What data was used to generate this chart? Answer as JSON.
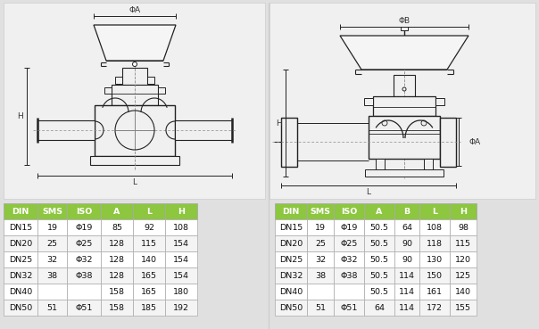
{
  "bg_color": "#e0e0e0",
  "panel_color": "#e8e8e8",
  "table1_header": [
    "DIN",
    "SMS",
    "ISO",
    "A",
    "L",
    "H"
  ],
  "table1_rows": [
    [
      "DN15",
      "19",
      "Φ19",
      "85",
      "92",
      "108"
    ],
    [
      "DN20",
      "25",
      "Φ25",
      "128",
      "115",
      "154"
    ],
    [
      "DN25",
      "32",
      "Φ32",
      "128",
      "140",
      "154"
    ],
    [
      "DN32",
      "38",
      "Φ38",
      "128",
      "165",
      "154"
    ],
    [
      "DN40",
      "",
      "",
      "158",
      "165",
      "180"
    ],
    [
      "DN50",
      "51",
      "Φ51",
      "158",
      "185",
      "192"
    ]
  ],
  "table2_header": [
    "DIN",
    "SMS",
    "ISO",
    "A",
    "B",
    "L",
    "H"
  ],
  "table2_rows": [
    [
      "DN15",
      "19",
      "Φ19",
      "50.5",
      "64",
      "108",
      "98"
    ],
    [
      "DN20",
      "25",
      "Φ25",
      "50.5",
      "90",
      "118",
      "115"
    ],
    [
      "DN25",
      "32",
      "Φ32",
      "50.5",
      "90",
      "130",
      "120"
    ],
    [
      "DN32",
      "38",
      "Φ38",
      "50.5",
      "114",
      "150",
      "125"
    ],
    [
      "DN40",
      "",
      "",
      "50.5",
      "114",
      "161",
      "140"
    ],
    [
      "DN50",
      "51",
      "Φ51",
      "64",
      "114",
      "172",
      "155"
    ]
  ],
  "header_color": "#8dc63f",
  "row_color_odd": "#ffffff",
  "row_color_even": "#f2f2f2",
  "border_color": "#aaaaaa",
  "text_color": "#111111",
  "line_color": "#222222",
  "dim_color": "#333333"
}
